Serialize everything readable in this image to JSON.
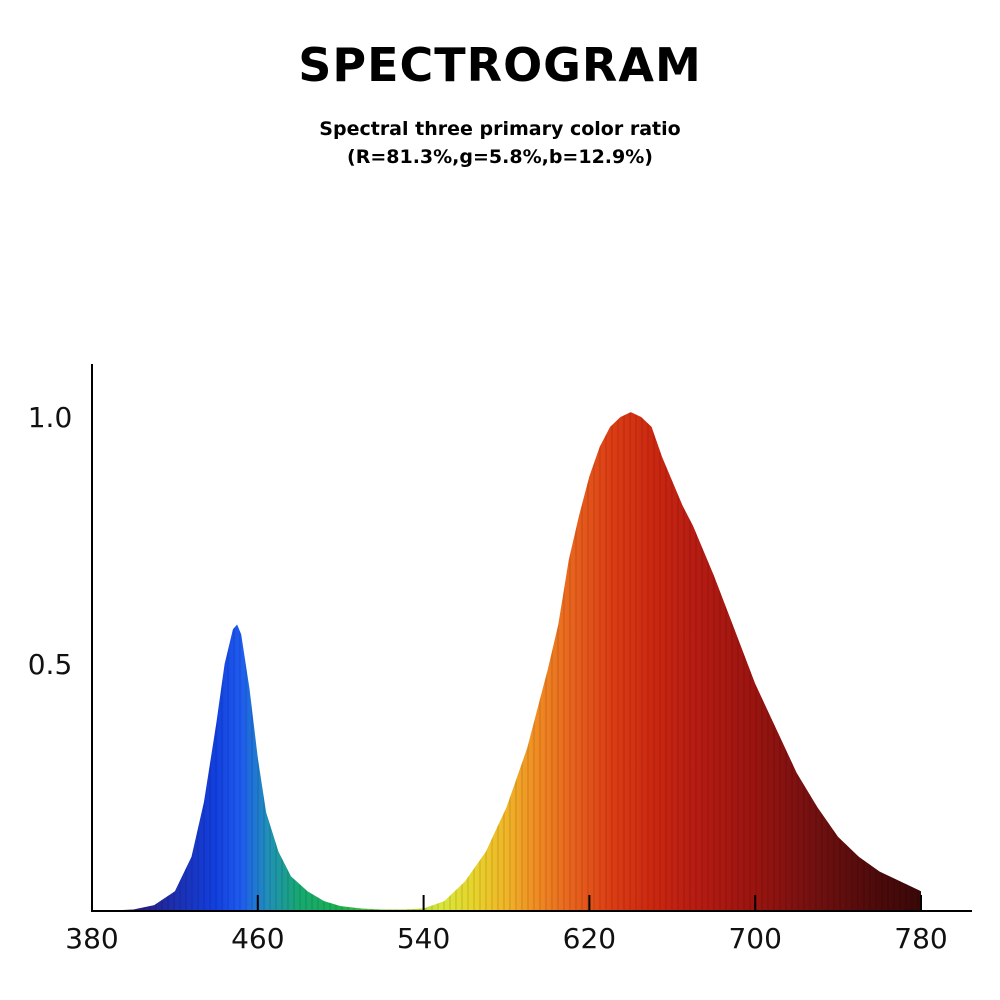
{
  "title": "SPECTROGRAM",
  "subtitle_line1": "Spectral three primary color ratio",
  "subtitle_line2": "(R=81.3%,g=5.8%,b=12.9%)",
  "chart_data": {
    "type": "area",
    "title": "SPECTROGRAM",
    "subtitle": "Spectral three primary color ratio (R=81.3%,g=5.8%,b=12.9%)",
    "xlabel": "",
    "ylabel": "",
    "xlim": [
      380,
      790
    ],
    "ylim": [
      0,
      1.1
    ],
    "x_ticks": [
      380,
      460,
      540,
      620,
      700,
      780
    ],
    "y_ticks": [
      0.5,
      1.0
    ],
    "y_tick_labels": [
      "0.5",
      "1.0"
    ],
    "grid": false,
    "legend": "none",
    "series": [
      {
        "x": [
          384,
          400,
          410,
          420,
          428,
          434,
          440,
          444,
          448,
          450,
          452,
          456,
          460,
          464,
          470,
          476,
          484,
          492,
          500,
          510,
          520,
          530,
          540,
          550,
          560,
          570,
          580,
          590,
          600,
          605,
          610,
          615,
          620,
          625,
          630,
          635,
          640,
          645,
          650,
          655,
          660,
          665,
          670,
          680,
          690,
          700,
          710,
          720,
          730,
          740,
          750,
          760,
          770,
          780
        ],
        "y": [
          0.0,
          0.003,
          0.012,
          0.04,
          0.11,
          0.22,
          0.38,
          0.5,
          0.57,
          0.58,
          0.56,
          0.45,
          0.31,
          0.2,
          0.12,
          0.07,
          0.04,
          0.02,
          0.01,
          0.005,
          0.003,
          0.003,
          0.005,
          0.02,
          0.06,
          0.12,
          0.21,
          0.33,
          0.49,
          0.58,
          0.71,
          0.8,
          0.88,
          0.94,
          0.98,
          1.0,
          1.01,
          1.0,
          0.98,
          0.92,
          0.87,
          0.82,
          0.78,
          0.68,
          0.57,
          0.46,
          0.37,
          0.28,
          0.21,
          0.15,
          0.11,
          0.08,
          0.06,
          0.04
        ]
      }
    ]
  }
}
